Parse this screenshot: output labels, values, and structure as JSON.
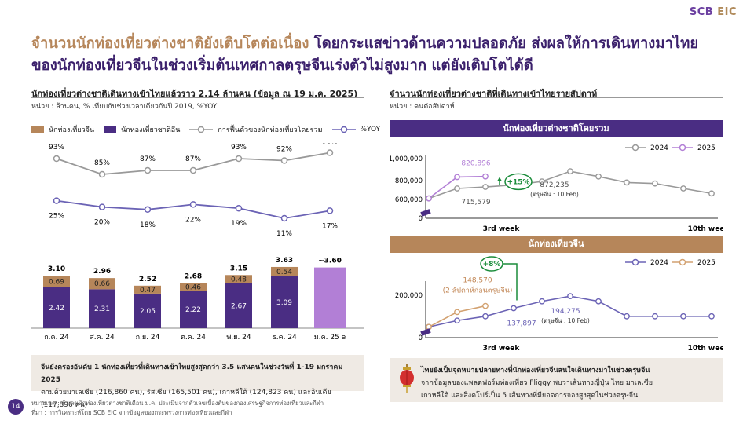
{
  "logo": {
    "scb": "SCB",
    "eic": "EIC"
  },
  "headline": {
    "line1_highlight": "จำนวนนักท่องเที่ยวต่างชาติยังเติบโตต่อเนื่อง",
    "line1_rest": " โดยกระแสข่าวด้านความปลอดภัย ส่งผลให้การเดินทางมาไทย",
    "line2": "ของนักท่องเที่ยวจีนในช่วงเริ่มต้นเทศกาลตรุษจีนเร่งตัวไม่สูงมาก แต่ยังเติบโตได้ดี"
  },
  "left": {
    "title": "นักท่องเที่ยวต่างชาติเดินทางเข้าไทยแล้วราว 2.14 ล้านคน (ข้อมูล ณ 19 ม.ค. 2025)",
    "subtitle": "หน่วย : ล้านคน, % เทียบกับช่วงเวลาเดียวกันปี 2019, %YOY",
    "legend": [
      "นักท่องเที่ยวจีน",
      "นักท่องเที่ยวชาติอื่น",
      "การฟื้นตัวของนักท่องเที่ยวโดยรวม",
      "%YOY"
    ],
    "note_bold": "จีนยังครองอันดับ 1 นักท่องเที่ยวที่เดินทางเข้าไทยสูงสุดกว่า 3.5 แสนคนในช่วงวันที่ 1-19 มกราคม 2025",
    "note_rest": "ตามด้วยมาเลเซีย (216,860 คน), รัสเซีย (165,501 คน), เกาหลีใต้ (124,823 คน) และอินเดีย (117,896 คน)"
  },
  "right": {
    "title": "จำนวนนักท่องเที่ยวต่างชาติที่เดินทางเข้าไทยรายสัปดาห์",
    "subtitle": "หน่วย : คนต่อสัปดาห์",
    "banner_total": "นักท่องเที่ยวต่างชาติโดยรวม",
    "banner_china": "นักท่องเที่ยวจีน",
    "note_bold": "ไทยยังเป็นจุดหมายปลายทางที่นักท่องเที่ยวจีนสนใจเดินทางมาในช่วงตรุษจีน",
    "note_rest1": "จากข้อมูลของแพลตฟอร์มท่องเที่ยว Fliggy พบว่าเส้นทางญี่ปุ่น ไทย มาเลเซีย",
    "note_rest2": "เกาหลีใต้ และสิงคโปร์เป็น 5 เส้นทางที่มียอดการจองสูงสุดในช่วงตรุษจีน"
  },
  "footer": {
    "page": "14",
    "line1": "หมายเหตุ : ตัวเลขนักท่องเที่ยวต่างชาติเดือน ม.ค. ประเมินจากตัวเลขเบื้องต้นของกองเศรษฐกิจการท่องเที่ยวและกีฬา",
    "line2": "ที่มา : การวิเคราะห์โดย SCB EIC จากข้อมูลของกระทรวงการท่องเที่ยวและกีฬา"
  },
  "colors": {
    "purple": "#4a2d83",
    "tan": "#b6865a",
    "light_purple": "#b27fd6",
    "gray": "#999999",
    "yoy": "#6b63b5"
  },
  "chart_data": [
    {
      "type": "bar",
      "stacked": true,
      "categories": [
        "ก.ค. 24",
        "ส.ค. 24",
        "ก.ย. 24",
        "ต.ค. 24",
        "พ.ย. 24",
        "ธ.ค. 24",
        "ม.ค. 25 e"
      ],
      "series": [
        {
          "name": "นักท่องเที่ยวชาติอื่น",
          "values": [
            2.42,
            2.31,
            2.05,
            2.22,
            2.67,
            3.09,
            null
          ]
        },
        {
          "name": "นักท่องเที่ยวจีน",
          "values": [
            0.69,
            0.66,
            0.47,
            0.46,
            0.48,
            0.54,
            null
          ]
        }
      ],
      "totals_labels": [
        "3.10",
        "2.96",
        "2.52",
        "2.68",
        "3.15",
        "3.63",
        "~3.60"
      ],
      "estimate_total": 3.6,
      "ylim": [
        0,
        4
      ]
    },
    {
      "type": "line",
      "categories": [
        "ก.ค. 24",
        "ส.ค. 24",
        "ก.ย. 24",
        "ต.ค. 24",
        "พ.ย. 24",
        "ธ.ค. 24",
        "ม.ค. 25 e"
      ],
      "series": [
        {
          "name": "การฟื้นตัวของนักท่องเที่ยวโดยรวม",
          "values": [
            93,
            85,
            87,
            87,
            93,
            92,
            96
          ],
          "labels": [
            "93%",
            "85%",
            "87%",
            "87%",
            "93%",
            "92%",
            "96%"
          ]
        },
        {
          "name": "%YOY",
          "values": [
            25,
            20,
            18,
            22,
            19,
            11,
            17
          ],
          "labels": [
            "25%",
            "20%",
            "18%",
            "22%",
            "19%",
            "11%",
            "17%"
          ]
        }
      ]
    },
    {
      "type": "line",
      "y_ticks": [
        "0",
        "600,000",
        "800,000",
        "1,000,000"
      ],
      "x_ticks": [
        "3rd week",
        "10th week"
      ],
      "legend": [
        "2024",
        "2025"
      ],
      "series": [
        {
          "name": "2024",
          "x": [
            1,
            2,
            3,
            4,
            5,
            6,
            7,
            8,
            9,
            10,
            11
          ],
          "y": [
            600000,
            700000,
            715579,
            735000,
            770000,
            872235,
            820000,
            760000,
            750000,
            700000,
            650000
          ]
        },
        {
          "name": "2025",
          "x": [
            1,
            2,
            3
          ],
          "y": [
            600000,
            815000,
            820896
          ]
        }
      ],
      "annotations": {
        "value_2025": "820,896",
        "value_2024": "715,579",
        "peak_2024": "872,235",
        "peak_note": "(ตรุษจีน : 10 Feb)",
        "growth": "+15%"
      }
    },
    {
      "type": "line",
      "y_ticks": [
        "0",
        "200,000"
      ],
      "x_ticks": [
        "3rd week",
        "10th week"
      ],
      "legend": [
        "2024",
        "2025"
      ],
      "series": [
        {
          "name": "2024",
          "x": [
            1,
            2,
            3,
            4,
            5,
            6,
            7,
            8,
            9,
            10,
            11
          ],
          "y": [
            50000,
            80000,
            100000,
            137897,
            170000,
            194275,
            170000,
            100000,
            100000,
            100000,
            100000
          ]
        },
        {
          "name": "2025",
          "x": [
            1,
            2,
            3
          ],
          "y": [
            50000,
            120000,
            148570
          ]
        }
      ],
      "annotations": {
        "value_2025": "148,570",
        "value_2025_note": "(2 สัปดาห์ก่อนตรุษจีน)",
        "value_2024": "137,897",
        "peak_2024": "194,275",
        "peak_note": "(ตรุษจีน : 10 Feb)",
        "growth": "+8%"
      }
    }
  ]
}
